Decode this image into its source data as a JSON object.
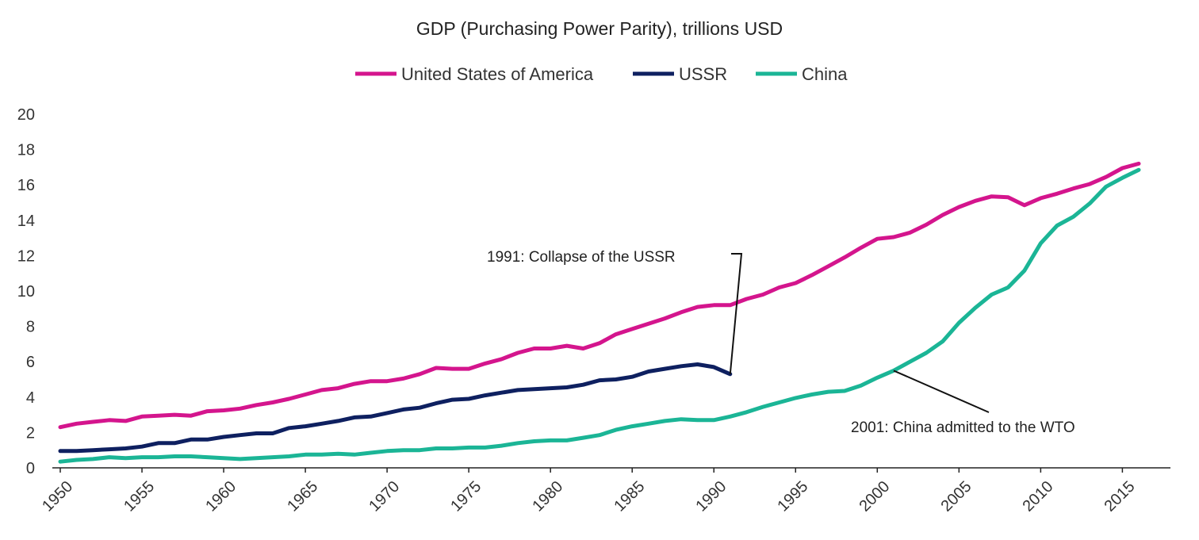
{
  "chart_data": {
    "type": "line",
    "title": "GDP (Purchasing Power Parity), trillions USD",
    "xlabel": "",
    "ylabel": "",
    "xlim": [
      1950,
      2016
    ],
    "ylim": [
      0,
      20
    ],
    "x_ticks": [
      "1950",
      "1955",
      "1960",
      "1965",
      "1970",
      "1975",
      "1980",
      "1985",
      "1990",
      "1995",
      "2000",
      "2005",
      "2010",
      "2015"
    ],
    "y_ticks": [
      "0",
      "2",
      "4",
      "6",
      "8",
      "10",
      "12",
      "14",
      "16",
      "18",
      "20"
    ],
    "grid": false,
    "legend_position": "top-center",
    "series": [
      {
        "name": "United States of America",
        "color": "#d4158d",
        "x": [
          1950,
          1951,
          1952,
          1953,
          1954,
          1955,
          1956,
          1957,
          1958,
          1959,
          1960,
          1961,
          1962,
          1963,
          1964,
          1965,
          1966,
          1967,
          1968,
          1969,
          1970,
          1971,
          1972,
          1973,
          1974,
          1975,
          1976,
          1977,
          1978,
          1979,
          1980,
          1981,
          1982,
          1983,
          1984,
          1985,
          1986,
          1987,
          1988,
          1989,
          1990,
          1991,
          1992,
          1993,
          1994,
          1995,
          1996,
          1997,
          1998,
          1999,
          2000,
          2001,
          2002,
          2003,
          2004,
          2005,
          2006,
          2007,
          2008,
          2009,
          2010,
          2011,
          2012,
          2013,
          2014,
          2015,
          2016
        ],
        "values": [
          2.3,
          2.5,
          2.6,
          2.7,
          2.65,
          2.9,
          2.95,
          3.0,
          2.95,
          3.2,
          3.25,
          3.35,
          3.55,
          3.7,
          3.9,
          4.15,
          4.4,
          4.5,
          4.75,
          4.9,
          4.9,
          5.05,
          5.3,
          5.65,
          5.6,
          5.6,
          5.9,
          6.15,
          6.5,
          6.75,
          6.75,
          6.9,
          6.75,
          7.05,
          7.55,
          7.85,
          8.15,
          8.45,
          8.8,
          9.1,
          9.2,
          9.2,
          9.55,
          9.8,
          10.2,
          10.45,
          10.9,
          11.4,
          11.9,
          12.45,
          12.95,
          13.05,
          13.3,
          13.75,
          14.3,
          14.75,
          15.1,
          15.35,
          15.3,
          14.85,
          15.25,
          15.5,
          15.8,
          16.05,
          16.45,
          16.95,
          17.2
        ]
      },
      {
        "name": "USSR",
        "color": "#0e2060",
        "x": [
          1950,
          1951,
          1952,
          1953,
          1954,
          1955,
          1956,
          1957,
          1958,
          1959,
          1960,
          1961,
          1962,
          1963,
          1964,
          1965,
          1966,
          1967,
          1968,
          1969,
          1970,
          1971,
          1972,
          1973,
          1974,
          1975,
          1976,
          1977,
          1978,
          1979,
          1980,
          1981,
          1982,
          1983,
          1984,
          1985,
          1986,
          1987,
          1988,
          1989,
          1990,
          1991
        ],
        "values": [
          0.95,
          0.95,
          1.0,
          1.05,
          1.1,
          1.2,
          1.4,
          1.4,
          1.6,
          1.6,
          1.75,
          1.85,
          1.95,
          1.95,
          2.25,
          2.35,
          2.5,
          2.65,
          2.85,
          2.9,
          3.1,
          3.3,
          3.4,
          3.65,
          3.85,
          3.9,
          4.1,
          4.25,
          4.4,
          4.45,
          4.5,
          4.55,
          4.7,
          4.95,
          5.0,
          5.15,
          5.45,
          5.6,
          5.75,
          5.85,
          5.7,
          5.3
        ]
      },
      {
        "name": "China",
        "color": "#1bb596",
        "x": [
          1950,
          1951,
          1952,
          1953,
          1954,
          1955,
          1956,
          1957,
          1958,
          1959,
          1960,
          1961,
          1962,
          1963,
          1964,
          1965,
          1966,
          1967,
          1968,
          1969,
          1970,
          1971,
          1972,
          1973,
          1974,
          1975,
          1976,
          1977,
          1978,
          1979,
          1980,
          1981,
          1982,
          1983,
          1984,
          1985,
          1986,
          1987,
          1988,
          1989,
          1990,
          1991,
          1992,
          1993,
          1994,
          1995,
          1996,
          1997,
          1998,
          1999,
          2000,
          2001,
          2002,
          2003,
          2004,
          2005,
          2006,
          2007,
          2008,
          2009,
          2010,
          2011,
          2012,
          2013,
          2014,
          2015,
          2016
        ],
        "values": [
          0.35,
          0.45,
          0.5,
          0.6,
          0.55,
          0.6,
          0.6,
          0.65,
          0.65,
          0.6,
          0.55,
          0.5,
          0.55,
          0.6,
          0.65,
          0.75,
          0.75,
          0.8,
          0.75,
          0.85,
          0.95,
          1.0,
          1.0,
          1.1,
          1.1,
          1.15,
          1.15,
          1.25,
          1.4,
          1.5,
          1.55,
          1.55,
          1.7,
          1.85,
          2.15,
          2.35,
          2.5,
          2.65,
          2.75,
          2.7,
          2.7,
          2.9,
          3.15,
          3.45,
          3.7,
          3.95,
          4.15,
          4.3,
          4.35,
          4.65,
          5.1,
          5.5,
          6.0,
          6.5,
          7.15,
          8.2,
          9.05,
          9.8,
          10.2,
          11.15,
          12.7,
          13.7,
          14.2,
          14.95,
          15.9,
          16.4,
          16.85
        ]
      }
    ],
    "annotations": [
      {
        "text": "1991: Collapse of the USSR",
        "x": 1991,
        "y": 5.3
      },
      {
        "text": "2001: China admitted to the WTO",
        "x": 2001,
        "y": 5.5
      }
    ]
  }
}
